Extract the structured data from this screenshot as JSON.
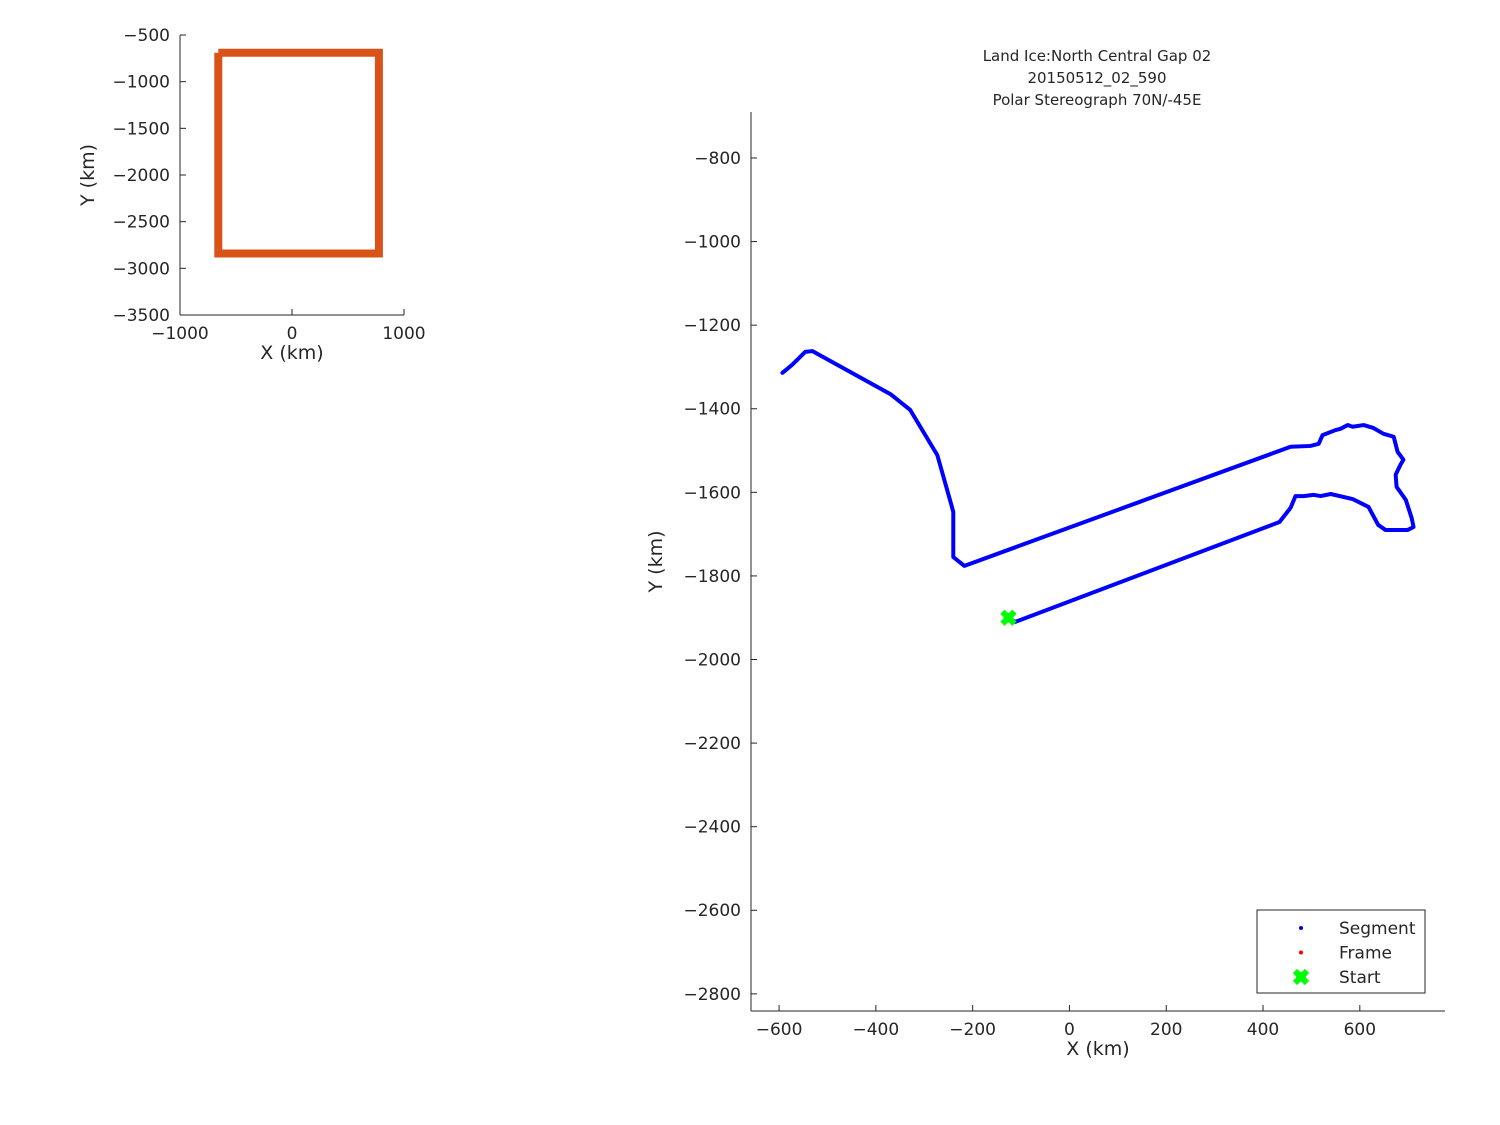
{
  "chart_data": [
    {
      "type": "line",
      "title": "",
      "xlabel": "X (km)",
      "ylabel": "Y (km)",
      "xlim": [
        -1000,
        1000
      ],
      "ylim": [
        -3500,
        -500
      ],
      "xticks": [
        -1000,
        0,
        1000
      ],
      "yticks": [
        -500,
        -1000,
        -1500,
        -2000,
        -2500,
        -3000,
        -3500
      ],
      "grid": false,
      "series": [
        {
          "color": "#D95319",
          "x": [
            -658,
            776,
            776,
            -658,
            -658
          ],
          "y": [
            -690,
            -690,
            -2841,
            -2841,
            -690
          ]
        }
      ]
    },
    {
      "type": "line",
      "title": [
        "Land Ice:North Central Gap 02",
        "20150512_02_590",
        "Polar Stereograph 70N/-45E"
      ],
      "xlabel": "X (km)",
      "ylabel": "Y (km)",
      "xlim": [
        -658,
        776
      ],
      "ylim": [
        -2841,
        -690
      ],
      "xticks": [
        -600,
        -400,
        -200,
        0,
        200,
        400,
        600
      ],
      "yticks": [
        -800,
        -1000,
        -1200,
        -1400,
        -1600,
        -1800,
        -2000,
        -2200,
        -2400,
        -2600,
        -2800
      ],
      "grid": false,
      "legend_position": "bottom-right",
      "legend": [
        {
          "name": "Segment",
          "color": "#0000ff",
          "marker": "dot"
        },
        {
          "name": "Frame",
          "color": "#ff0000",
          "marker": "dot"
        },
        {
          "name": "Start",
          "color": "#00ff00",
          "marker": "x"
        }
      ],
      "segment": {
        "color": "#0000ff",
        "x": [
          -126,
          -112,
          434,
          457,
          467,
          484,
          504,
          519,
          540,
          585,
          618,
          638,
          653,
          699,
          711,
          707,
          695,
          676,
          674,
          684,
          690,
          678,
          670,
          649,
          628,
          608,
          585,
          575,
          560,
          550,
          523,
          515,
          498,
          457,
          -217,
          -240,
          -240,
          -244,
          -273,
          -329,
          -370,
          -531,
          -546,
          -573,
          -593
        ],
        "y": [
          -1900,
          -1910,
          -1671,
          -1637,
          -1609,
          -1609,
          -1606,
          -1609,
          -1604,
          -1616,
          -1635,
          -1678,
          -1690,
          -1690,
          -1683,
          -1661,
          -1618,
          -1587,
          -1558,
          -1534,
          -1522,
          -1503,
          -1467,
          -1460,
          -1446,
          -1439,
          -1443,
          -1439,
          -1448,
          -1451,
          -1463,
          -1484,
          -1489,
          -1491,
          -1776,
          -1755,
          -1647,
          -1630,
          -1511,
          -1403,
          -1365,
          -1262,
          -1264,
          -1295,
          -1314
        ]
      },
      "start": {
        "x": -126,
        "y": -1900
      }
    }
  ]
}
